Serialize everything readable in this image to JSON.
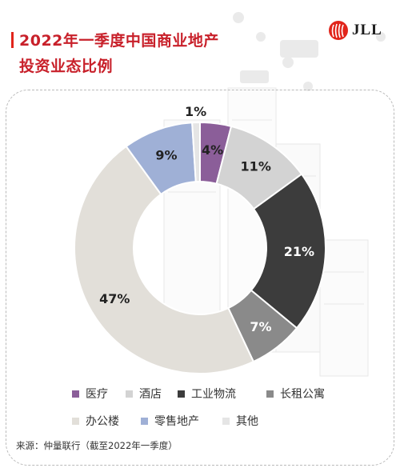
{
  "header": {
    "title_line1": "2022年一季度中国商业地产",
    "title_line2": "投资业态比例",
    "logo_text": "JLL",
    "accent_color": "#e1251b"
  },
  "chart_data": {
    "type": "pie",
    "donut": true,
    "start_angle_deg": 0,
    "direction": "clockwise",
    "categories": [
      "医疗",
      "酒店",
      "工业物流",
      "长租公寓",
      "办公楼",
      "零售地产",
      "其他"
    ],
    "values": [
      4,
      11,
      21,
      7,
      47,
      9,
      1
    ],
    "labels": [
      "4%",
      "11%",
      "21%",
      "7%",
      "47%",
      "9%",
      "1%"
    ],
    "colors": [
      "#8b5e99",
      "#d3d3d3",
      "#3c3c3c",
      "#8a8a8a",
      "#e2dfd9",
      "#9fb0d6",
      "#e5e5e5"
    ],
    "label_colors": [
      "#222222",
      "#222222",
      "#ffffff",
      "#ffffff",
      "#222222",
      "#222222",
      "#222222"
    ],
    "legend_placement": "bottom"
  },
  "footer": {
    "source": "来源：仲量联行（截至2022年一季度）"
  }
}
